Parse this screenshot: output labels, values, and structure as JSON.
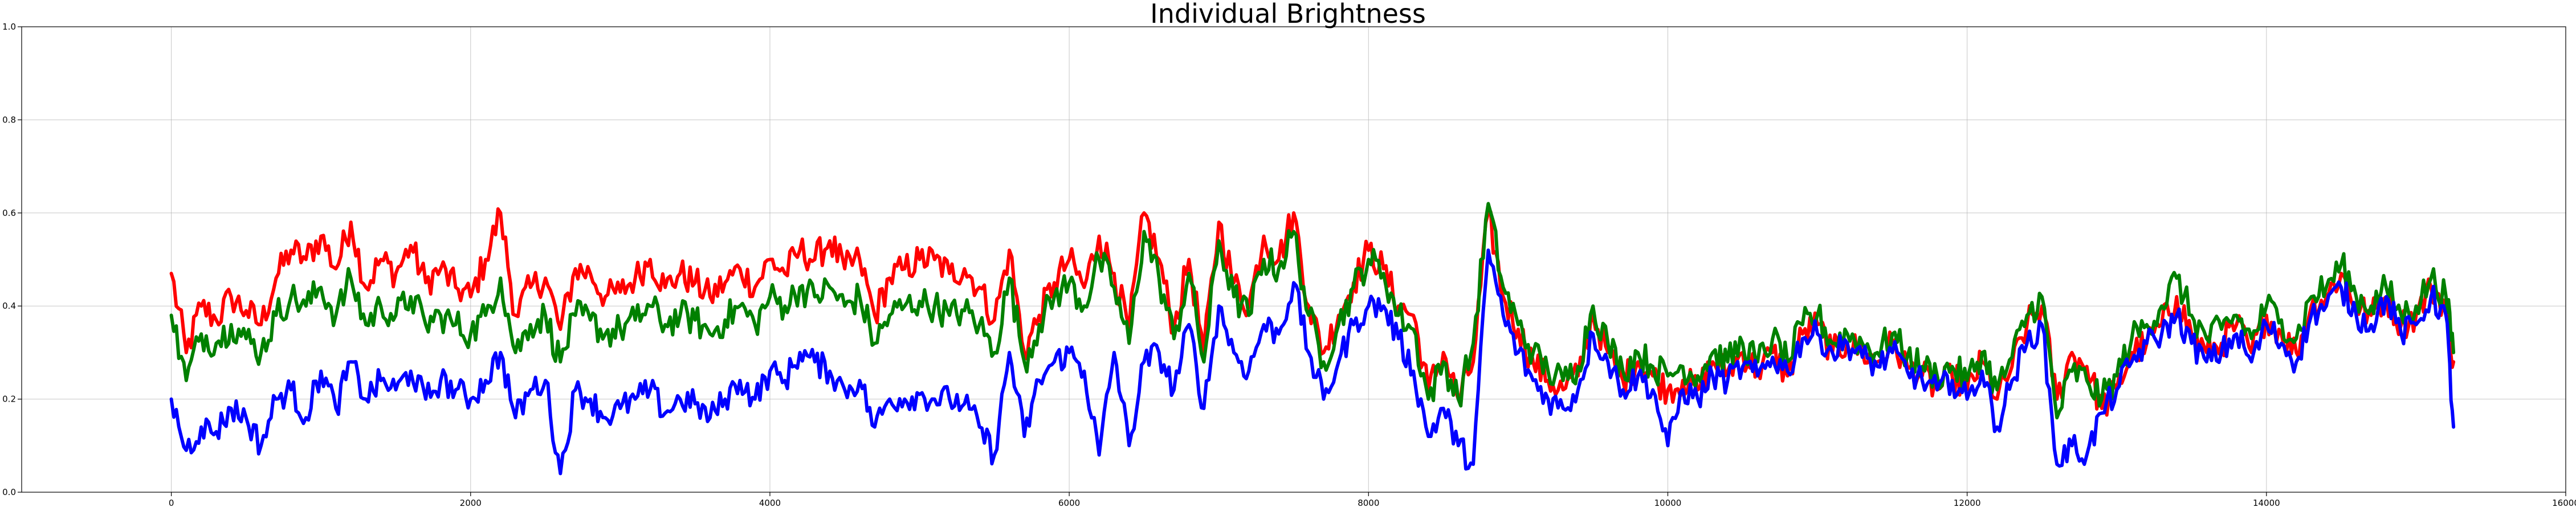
{
  "chart_data": {
    "type": "line",
    "title": "Individual Brightness",
    "xlabel": "",
    "ylabel": "",
    "xlim": [
      -1000,
      16000
    ],
    "ylim": [
      0.0,
      1.0
    ],
    "grid": true,
    "xticks": [
      0,
      2000,
      4000,
      6000,
      8000,
      10000,
      12000,
      14000,
      16000
    ],
    "yticks": [
      0.0,
      0.2,
      0.4,
      0.6,
      0.8,
      1.0
    ],
    "xtick_labels": [
      "0",
      "2000",
      "4000",
      "6000",
      "8000",
      "10000",
      "12000",
      "14000",
      "16000"
    ],
    "ytick_labels": [
      "0.0",
      "0.2",
      "0.4",
      "0.6",
      "0.8",
      "1.0"
    ],
    "series": [
      {
        "color": "#ff0000",
        "x": [
          0,
          100,
          200,
          300,
          400,
          500,
          600,
          700,
          800,
          900,
          1000,
          1100,
          1200,
          1300,
          1400,
          1500,
          1600,
          1700,
          1800,
          1900,
          2000,
          2100,
          2200,
          2300,
          2400,
          2500,
          2600,
          2700,
          2800,
          2900,
          3000,
          3100,
          3200,
          3300,
          3400,
          3500,
          3600,
          3700,
          3800,
          3900,
          4000,
          4100,
          4200,
          4300,
          4400,
          4500,
          4600,
          4700,
          4800,
          4900,
          5000,
          5100,
          5200,
          5300,
          5400,
          5500,
          5600,
          5700,
          5800,
          5900,
          6000,
          6100,
          6200,
          6300,
          6400,
          6500,
          6600,
          6700,
          6800,
          6900,
          7000,
          7100,
          7200,
          7300,
          7400,
          7500,
          7600,
          7700,
          7800,
          7900,
          8000,
          8100,
          8200,
          8300,
          8400,
          8500,
          8600,
          8700,
          8800,
          8900,
          9000,
          9100,
          9200,
          9300,
          9400,
          9500,
          9600,
          9700,
          9800,
          9900,
          10000,
          10100,
          10200,
          10300,
          10400,
          10500,
          10600,
          10700,
          10800,
          10900,
          11000,
          11100,
          11200,
          11300,
          11400,
          11500,
          11600,
          11700,
          11800,
          11900,
          12000,
          12100,
          12200,
          12300,
          12400,
          12500,
          12600,
          12700,
          12800,
          12900,
          13000,
          13100,
          13200,
          13300,
          13400,
          13500,
          13600,
          13700,
          13800,
          13900,
          14000,
          14100,
          14200,
          14300,
          14400,
          14500,
          14600,
          14700,
          14800,
          14900,
          15000,
          15100,
          15200,
          15250
        ],
        "y": [
          0.47,
          0.3,
          0.4,
          0.37,
          0.42,
          0.39,
          0.36,
          0.46,
          0.52,
          0.5,
          0.55,
          0.48,
          0.58,
          0.44,
          0.5,
          0.47,
          0.53,
          0.45,
          0.48,
          0.44,
          0.42,
          0.5,
          0.6,
          0.38,
          0.44,
          0.46,
          0.35,
          0.48,
          0.47,
          0.42,
          0.43,
          0.46,
          0.5,
          0.44,
          0.47,
          0.45,
          0.42,
          0.45,
          0.48,
          0.44,
          0.5,
          0.47,
          0.52,
          0.5,
          0.54,
          0.48,
          0.5,
          0.38,
          0.46,
          0.48,
          0.5,
          0.5,
          0.47,
          0.48,
          0.44,
          0.37,
          0.52,
          0.3,
          0.38,
          0.45,
          0.5,
          0.44,
          0.55,
          0.47,
          0.35,
          0.6,
          0.5,
          0.35,
          0.5,
          0.3,
          0.58,
          0.45,
          0.4,
          0.55,
          0.5,
          0.6,
          0.4,
          0.3,
          0.38,
          0.45,
          0.52,
          0.48,
          0.4,
          0.38,
          0.22,
          0.3,
          0.2,
          0.28,
          0.6,
          0.42,
          0.35,
          0.28,
          0.24,
          0.22,
          0.25,
          0.38,
          0.3,
          0.24,
          0.28,
          0.25,
          0.22,
          0.24,
          0.22,
          0.28,
          0.26,
          0.3,
          0.26,
          0.3,
          0.25,
          0.34,
          0.36,
          0.3,
          0.32,
          0.3,
          0.28,
          0.32,
          0.27,
          0.25,
          0.22,
          0.25,
          0.22,
          0.28,
          0.2,
          0.27,
          0.36,
          0.4,
          0.2,
          0.3,
          0.27,
          0.18,
          0.22,
          0.3,
          0.32,
          0.36,
          0.42,
          0.34,
          0.3,
          0.32,
          0.36,
          0.3,
          0.38,
          0.34,
          0.3,
          0.4,
          0.42,
          0.47,
          0.4,
          0.38,
          0.42,
          0.36,
          0.38,
          0.44,
          0.4,
          0.28
        ],
        "noise": 0.035
      },
      {
        "color": "#008000",
        "x": [
          0,
          100,
          200,
          300,
          400,
          500,
          600,
          700,
          800,
          900,
          1000,
          1100,
          1200,
          1300,
          1400,
          1500,
          1600,
          1700,
          1800,
          1900,
          2000,
          2100,
          2200,
          2300,
          2400,
          2500,
          2600,
          2700,
          2800,
          2900,
          3000,
          3100,
          3200,
          3300,
          3400,
          3500,
          3600,
          3700,
          3800,
          3900,
          4000,
          4100,
          4200,
          4300,
          4400,
          4500,
          4600,
          4700,
          4800,
          4900,
          5000,
          5100,
          5200,
          5300,
          5400,
          5500,
          5600,
          5700,
          5800,
          5900,
          6000,
          6100,
          6200,
          6300,
          6400,
          6500,
          6600,
          6700,
          6800,
          6900,
          7000,
          7100,
          7200,
          7300,
          7400,
          7500,
          7600,
          7700,
          7800,
          7900,
          8000,
          8100,
          8200,
          8300,
          8400,
          8500,
          8600,
          8700,
          8800,
          8900,
          9000,
          9100,
          9200,
          9300,
          9400,
          9500,
          9600,
          9700,
          9800,
          9900,
          10000,
          10100,
          10200,
          10300,
          10400,
          10500,
          10600,
          10700,
          10800,
          10900,
          11000,
          11100,
          11200,
          11300,
          11400,
          11500,
          11600,
          11700,
          11800,
          11900,
          12000,
          12100,
          12200,
          12300,
          12400,
          12500,
          12600,
          12700,
          12800,
          12900,
          13000,
          13100,
          13200,
          13300,
          13400,
          13500,
          13600,
          13700,
          13800,
          13900,
          14000,
          14100,
          14200,
          14300,
          14400,
          14500,
          14600,
          14700,
          14800,
          14900,
          15000,
          15100,
          15200,
          15250
        ],
        "y": [
          0.38,
          0.24,
          0.34,
          0.32,
          0.36,
          0.33,
          0.3,
          0.38,
          0.42,
          0.4,
          0.44,
          0.38,
          0.46,
          0.36,
          0.4,
          0.38,
          0.42,
          0.36,
          0.38,
          0.36,
          0.34,
          0.38,
          0.46,
          0.3,
          0.36,
          0.38,
          0.28,
          0.38,
          0.37,
          0.34,
          0.35,
          0.37,
          0.4,
          0.36,
          0.38,
          0.37,
          0.34,
          0.37,
          0.4,
          0.36,
          0.42,
          0.4,
          0.44,
          0.42,
          0.44,
          0.4,
          0.42,
          0.32,
          0.38,
          0.4,
          0.41,
          0.4,
          0.38,
          0.39,
          0.36,
          0.3,
          0.46,
          0.28,
          0.36,
          0.42,
          0.45,
          0.4,
          0.5,
          0.44,
          0.32,
          0.56,
          0.46,
          0.33,
          0.47,
          0.28,
          0.54,
          0.42,
          0.38,
          0.5,
          0.48,
          0.56,
          0.38,
          0.28,
          0.36,
          0.44,
          0.5,
          0.47,
          0.38,
          0.35,
          0.2,
          0.28,
          0.2,
          0.32,
          0.62,
          0.44,
          0.36,
          0.3,
          0.26,
          0.24,
          0.27,
          0.4,
          0.32,
          0.26,
          0.3,
          0.27,
          0.25,
          0.27,
          0.25,
          0.3,
          0.28,
          0.32,
          0.28,
          0.33,
          0.28,
          0.36,
          0.38,
          0.32,
          0.34,
          0.32,
          0.3,
          0.34,
          0.29,
          0.27,
          0.25,
          0.27,
          0.24,
          0.3,
          0.22,
          0.29,
          0.38,
          0.42,
          0.16,
          0.26,
          0.24,
          0.2,
          0.25,
          0.33,
          0.36,
          0.4,
          0.46,
          0.38,
          0.33,
          0.35,
          0.38,
          0.33,
          0.4,
          0.37,
          0.33,
          0.42,
          0.44,
          0.49,
          0.42,
          0.4,
          0.44,
          0.38,
          0.4,
          0.46,
          0.42,
          0.3
        ],
        "noise": 0.035
      },
      {
        "color": "#0000ff",
        "x": [
          0,
          100,
          200,
          300,
          400,
          500,
          600,
          700,
          800,
          900,
          1000,
          1100,
          1200,
          1300,
          1400,
          1500,
          1600,
          1700,
          1800,
          1900,
          2000,
          2100,
          2200,
          2300,
          2400,
          2500,
          2600,
          2700,
          2800,
          2900,
          3000,
          3100,
          3200,
          3300,
          3400,
          3500,
          3600,
          3700,
          3800,
          3900,
          4000,
          4100,
          4200,
          4300,
          4400,
          4500,
          4600,
          4700,
          4800,
          4900,
          5000,
          5100,
          5200,
          5300,
          5400,
          5500,
          5600,
          5700,
          5800,
          5900,
          6000,
          6100,
          6200,
          6300,
          6400,
          6500,
          6600,
          6700,
          6800,
          6900,
          7000,
          7100,
          7200,
          7300,
          7400,
          7500,
          7600,
          7700,
          7800,
          7900,
          8000,
          8100,
          8200,
          8300,
          8400,
          8500,
          8600,
          8700,
          8800,
          8900,
          9000,
          9100,
          9200,
          9300,
          9400,
          9500,
          9600,
          9700,
          9800,
          9900,
          10000,
          10100,
          10200,
          10300,
          10400,
          10500,
          10600,
          10700,
          10800,
          10900,
          11000,
          11100,
          11200,
          11300,
          11400,
          11500,
          11600,
          11700,
          11800,
          11900,
          12000,
          12100,
          12200,
          12300,
          12400,
          12500,
          12600,
          12700,
          12800,
          12900,
          13000,
          13100,
          13200,
          13300,
          13400,
          13500,
          13600,
          13700,
          13800,
          13900,
          14000,
          14100,
          14200,
          14300,
          14400,
          14500,
          14600,
          14700,
          14800,
          14900,
          15000,
          15100,
          15200,
          15250
        ],
        "y": [
          0.2,
          0.09,
          0.14,
          0.13,
          0.18,
          0.16,
          0.1,
          0.2,
          0.22,
          0.16,
          0.26,
          0.18,
          0.28,
          0.2,
          0.24,
          0.22,
          0.26,
          0.2,
          0.24,
          0.22,
          0.2,
          0.24,
          0.3,
          0.16,
          0.22,
          0.24,
          0.04,
          0.22,
          0.2,
          0.16,
          0.18,
          0.2,
          0.22,
          0.17,
          0.2,
          0.19,
          0.16,
          0.2,
          0.24,
          0.2,
          0.26,
          0.24,
          0.3,
          0.28,
          0.26,
          0.22,
          0.24,
          0.14,
          0.2,
          0.2,
          0.21,
          0.2,
          0.2,
          0.19,
          0.14,
          0.08,
          0.3,
          0.12,
          0.24,
          0.28,
          0.3,
          0.26,
          0.08,
          0.3,
          0.1,
          0.28,
          0.3,
          0.22,
          0.36,
          0.18,
          0.4,
          0.3,
          0.26,
          0.36,
          0.34,
          0.45,
          0.3,
          0.2,
          0.28,
          0.36,
          0.4,
          0.4,
          0.33,
          0.26,
          0.12,
          0.18,
          0.1,
          0.06,
          0.52,
          0.38,
          0.3,
          0.24,
          0.2,
          0.18,
          0.22,
          0.34,
          0.28,
          0.22,
          0.25,
          0.22,
          0.1,
          0.22,
          0.2,
          0.25,
          0.24,
          0.27,
          0.25,
          0.29,
          0.26,
          0.33,
          0.34,
          0.3,
          0.32,
          0.29,
          0.27,
          0.3,
          0.26,
          0.24,
          0.22,
          0.24,
          0.2,
          0.26,
          0.14,
          0.24,
          0.32,
          0.36,
          0.06,
          0.1,
          0.08,
          0.17,
          0.22,
          0.28,
          0.32,
          0.34,
          0.38,
          0.32,
          0.28,
          0.3,
          0.34,
          0.28,
          0.36,
          0.32,
          0.28,
          0.38,
          0.4,
          0.44,
          0.38,
          0.36,
          0.42,
          0.34,
          0.36,
          0.42,
          0.38,
          0.14
        ],
        "noise": 0.03
      }
    ]
  }
}
